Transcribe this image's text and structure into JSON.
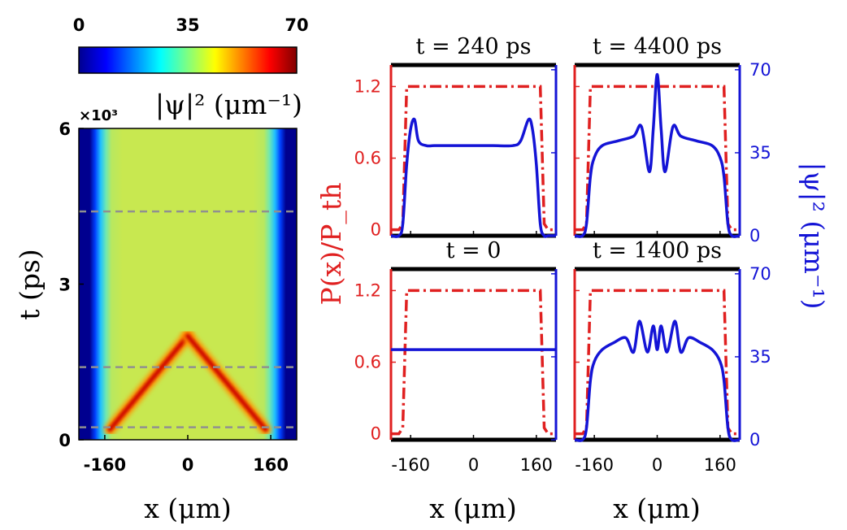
{
  "colors": {
    "red": "#e02020",
    "blue": "#1414d6",
    "dash": "#909090"
  },
  "colorbar": {
    "ticks": [
      "0",
      "35",
      "70"
    ],
    "label": "|ψ|² (μm⁻¹)",
    "range": [
      0,
      70
    ]
  },
  "heatmap": {
    "exponent": "×10³",
    "ylabel": "t (ps)",
    "xlabel": "x (μm)",
    "yticks": [
      "0",
      "3",
      "6"
    ],
    "xticks": [
      "-160",
      "0",
      "160"
    ],
    "xlim": [
      -210,
      210
    ],
    "ylim": [
      0,
      6000
    ],
    "marked_times_ps": [
      240,
      1400,
      4400
    ]
  },
  "panels": {
    "xlabel": "x (μm)",
    "left_ylabel": "P(x)/P_th",
    "right_ylabel": "|ψ|² (μm⁻¹)",
    "left_yticks": [
      "0",
      "0.6",
      "1.2"
    ],
    "right_yticks": [
      "0",
      "35",
      "70"
    ],
    "xticks": [
      "-160",
      "0",
      "160"
    ]
  },
  "chart_data": [
    {
      "type": "heatmap",
      "z_quantity": "|ψ|² (μm⁻¹)",
      "xlabel": "x (μm)",
      "ylabel": "t (ps)",
      "xlim": [
        -210,
        210
      ],
      "ylim": [
        0,
        6000
      ],
      "zlim": [
        0,
        70
      ],
      "description_of_features": {
        "pump_edges_x": [
          -170,
          170
        ],
        "colliding_fronts": {
          "start_t_ps": 200,
          "start_x": [
            -150,
            150
          ],
          "meet_t_ps": 2000,
          "meet_x": 0
        },
        "central_peak_after_t_ps": 2000,
        "background_value": 40
      }
    },
    {
      "type": "line",
      "title": "t = 240 ps",
      "x": [
        -210,
        -190,
        -180,
        -170,
        -160,
        -150,
        -140,
        -120,
        -100,
        -50,
        0,
        50,
        100,
        120,
        140,
        150,
        160,
        170,
        180,
        190,
        210
      ],
      "series": [
        {
          "values_left_axis": [
            0,
            0,
            0.05,
            1.2,
            1.2,
            1.2,
            1.2,
            1.2,
            1.2,
            1.2,
            1.2,
            1.2,
            1.2,
            1.2,
            1.2,
            1.2,
            1.2,
            1.2,
            0.05,
            0,
            0
          ]
        },
        {
          "values_right_axis": [
            0,
            0,
            5,
            30,
            45,
            49,
            40,
            38,
            38,
            38,
            38,
            38,
            38,
            40,
            49,
            45,
            30,
            5,
            0,
            0,
            0
          ]
        }
      ],
      "ylim_left": [
        -0.05,
        1.38
      ],
      "ylim_right": [
        0,
        72
      ]
    },
    {
      "type": "line",
      "title": "t = 4400 ps",
      "x": [
        -210,
        -190,
        -180,
        -170,
        -160,
        -140,
        -100,
        -60,
        -40,
        -20,
        -10,
        0,
        10,
        20,
        40,
        60,
        100,
        140,
        160,
        170,
        180,
        190,
        210
      ],
      "series": [
        {
          "values_left_axis": [
            0,
            0,
            0.05,
            1.2,
            1.2,
            1.2,
            1.2,
            1.2,
            1.2,
            1.2,
            1.2,
            1.2,
            1.2,
            1.2,
            1.2,
            1.2,
            1.2,
            1.2,
            1.2,
            1.2,
            0.05,
            0,
            0
          ]
        },
        {
          "values_right_axis": [
            0,
            0,
            5,
            25,
            33,
            38,
            40,
            42,
            46,
            27,
            45,
            68,
            45,
            27,
            46,
            42,
            40,
            38,
            33,
            25,
            5,
            0,
            0
          ]
        }
      ],
      "ylim_left": [
        -0.05,
        1.38
      ],
      "ylim_right": [
        0,
        72
      ]
    },
    {
      "type": "line",
      "title": "t = 0",
      "x": [
        -210,
        -190,
        -180,
        -170,
        -160,
        0,
        160,
        170,
        180,
        190,
        210
      ],
      "series": [
        {
          "values_left_axis": [
            0,
            0,
            0.05,
            1.2,
            1.2,
            1.2,
            1.2,
            1.2,
            0.05,
            0,
            0
          ]
        },
        {
          "values_right_axis": [
            38,
            38,
            38,
            38,
            38,
            38,
            38,
            38,
            38,
            38,
            38
          ]
        }
      ],
      "ylim_left": [
        -0.05,
        1.38
      ],
      "ylim_right": [
        0,
        72
      ]
    },
    {
      "type": "line",
      "title": "t = 1400 ps",
      "x": [
        -210,
        -190,
        -180,
        -170,
        -160,
        -140,
        -110,
        -80,
        -60,
        -45,
        -25,
        -10,
        0,
        10,
        25,
        45,
        60,
        80,
        110,
        140,
        160,
        170,
        180,
        190,
        210
      ],
      "series": [
        {
          "values_left_axis": [
            0,
            0,
            0.05,
            1.2,
            1.2,
            1.2,
            1.2,
            1.2,
            1.2,
            1.2,
            1.2,
            1.2,
            1.2,
            1.2,
            1.2,
            1.2,
            1.2,
            1.2,
            1.2,
            1.2,
            1.2,
            1.2,
            0.05,
            0,
            0
          ]
        },
        {
          "values_right_axis": [
            0,
            0,
            5,
            25,
            33,
            38,
            41,
            43,
            37,
            50,
            37,
            48,
            38,
            48,
            37,
            50,
            37,
            43,
            41,
            38,
            33,
            25,
            5,
            0,
            0
          ]
        }
      ],
      "ylim_left": [
        -0.05,
        1.38
      ],
      "ylim_right": [
        0,
        72
      ]
    }
  ]
}
